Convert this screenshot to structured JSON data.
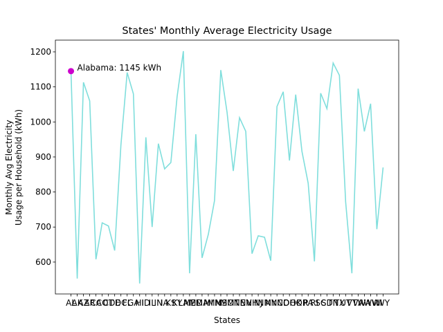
{
  "chart_data": {
    "type": "line",
    "title": "States' Monthly Average Electricity Usage",
    "xlabel": "States",
    "ylabel": "Monthly Avg Electricity\nUsage per Household (kWh)",
    "categories": [
      "AL",
      "AK",
      "AZ",
      "AR",
      "CA",
      "CO",
      "CT",
      "DE",
      "DC",
      "FL",
      "GA",
      "HI",
      "ID",
      "IL",
      "IN",
      "IA",
      "KS",
      "KY",
      "LA",
      "ME",
      "MD",
      "MA",
      "MI",
      "MN",
      "MS",
      "MO",
      "MT",
      "NE",
      "NV",
      "NH",
      "NJ",
      "NM",
      "NY",
      "NC",
      "ND",
      "OH",
      "OK",
      "OR",
      "PA",
      "RI",
      "SC",
      "SD",
      "TN",
      "TX",
      "UT",
      "VT",
      "VA",
      "WA",
      "WV",
      "WI",
      "WY"
    ],
    "series": [
      {
        "name": "Monthly Avg Electricity Usage",
        "color": "#7fdedc",
        "values": [
          1145,
          553,
          1113,
          1060,
          608,
          712,
          703,
          633,
          934,
          1141,
          1080,
          539,
          956,
          700,
          938,
          866,
          884,
          1072,
          1202,
          568,
          965,
          612,
          679,
          776,
          1148,
          1028,
          860,
          1012,
          973,
          624,
          675,
          671,
          604,
          1044,
          1086,
          890,
          1078,
          916,
          825,
          602,
          1082,
          1038,
          1168,
          1133,
          772,
          568,
          1095,
          973,
          1052,
          694,
          870
        ]
      }
    ],
    "annotation": {
      "text": "Alabama: 1145 kWh",
      "index": 0,
      "color": "#cc00cc"
    },
    "ylim": [
      509,
      1233.5
    ],
    "yticks": [
      600,
      700,
      800,
      900,
      1000,
      1100,
      1200
    ]
  }
}
